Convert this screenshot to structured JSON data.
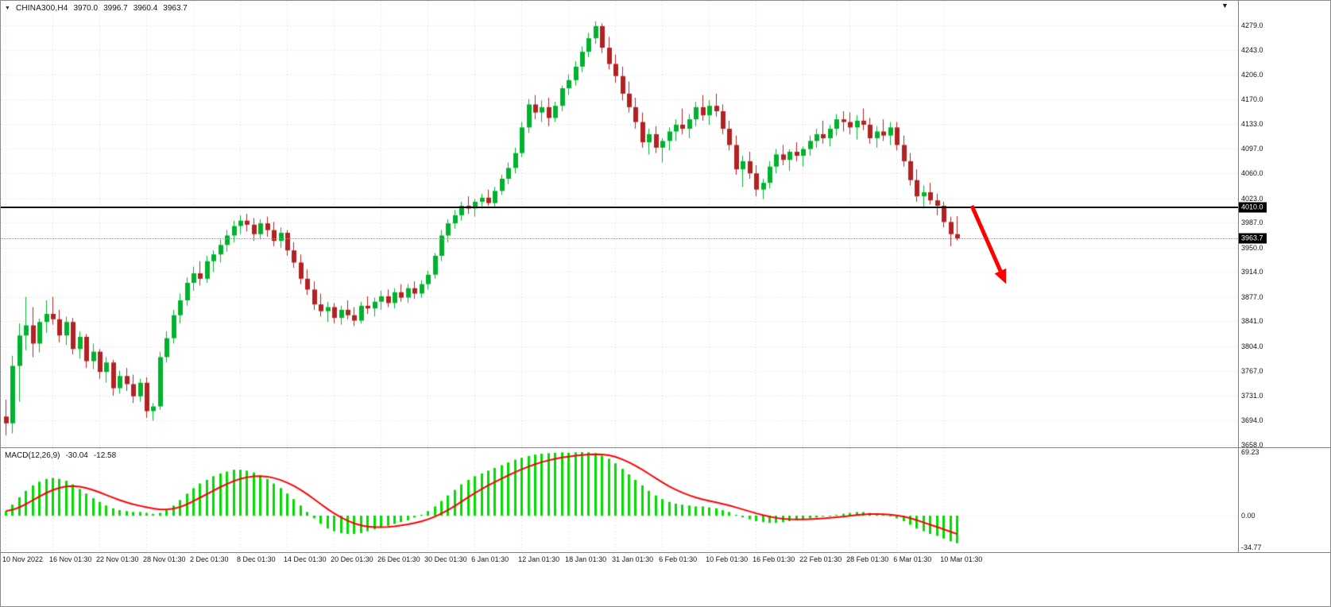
{
  "header": {
    "dropdown_icon": "▼",
    "symbol": "CHINA300,H4",
    "open": "3970.0",
    "high": "3996.7",
    "low": "3960.4",
    "close": "3963.7",
    "shift_marker_icon": "▼"
  },
  "indicator": {
    "name": "MACD(12,26,9)",
    "macd_value": "-30.04",
    "signal_value": "-12.58"
  },
  "colors": {
    "background": "#FFFFFF",
    "grid": "#D2D2D2",
    "candle_up": "#00B22D",
    "candle_down": "#B22222",
    "macd_histogram": "#00DC00",
    "macd_signal": "#FF0000",
    "hline": "#000000",
    "badge_bg": "#000000",
    "arrow": "#FF0000",
    "text": "#141414"
  },
  "chart_data": [
    {
      "type": "candlestick",
      "title": "CHINA300,H4",
      "symbol": "CHINA300",
      "timeframe": "H4",
      "current_ohlc": {
        "open": 3970.0,
        "high": 3996.7,
        "low": 3960.4,
        "close": 3963.7
      },
      "grid": true,
      "ylim": [
        3654,
        4316
      ],
      "y_ticks": [
        4279.0,
        4243.0,
        4206.0,
        4170.0,
        4133.0,
        4097.0,
        4060.0,
        4023.0,
        3987.0,
        3950.0,
        3914.0,
        3877.0,
        3841.0,
        3804.0,
        3767.0,
        3731.0,
        3694.0,
        3658.0
      ],
      "x_tick_labels": [
        "10 Nov 2022",
        "16 Nov 01:30",
        "22 Nov 01:30",
        "28 Nov 01:30",
        "2 Dec 01:30",
        "8 Dec 01:30",
        "14 Dec 01:30",
        "20 Dec 01:30",
        "26 Dec 01:30",
        "30 Dec 01:30",
        "6 Jan 01:30",
        "12 Jan 01:30",
        "18 Jan 01:30",
        "31 Jan 01:30",
        "6 Feb 01:30",
        "10 Feb 01:30",
        "16 Feb 01:30",
        "22 Feb 01:30",
        "28 Feb 01:30",
        "6 Mar 01:30",
        "10 Mar 01:30"
      ],
      "bars_per_tick": 7,
      "hline": {
        "value": 4010.0,
        "label": "4010.0",
        "color": "#000000"
      },
      "bid": {
        "value": 3963.7,
        "label": "3963.7"
      },
      "annotations": [
        {
          "type": "arrow",
          "direction": "down-right",
          "color": "#FF0000"
        }
      ],
      "ohlc": [
        [
          3700,
          3725,
          3672,
          3690
        ],
        [
          3690,
          3790,
          3675,
          3775
        ],
        [
          3775,
          3838,
          3722,
          3820
        ],
        [
          3820,
          3877,
          3798,
          3835
        ],
        [
          3835,
          3862,
          3788,
          3808
        ],
        [
          3808,
          3845,
          3795,
          3840
        ],
        [
          3840,
          3872,
          3824,
          3852
        ],
        [
          3852,
          3877,
          3836,
          3844
        ],
        [
          3844,
          3858,
          3810,
          3820
        ],
        [
          3820,
          3848,
          3806,
          3840
        ],
        [
          3840,
          3846,
          3792,
          3800
        ],
        [
          3800,
          3826,
          3786,
          3818
        ],
        [
          3818,
          3822,
          3772,
          3782
        ],
        [
          3782,
          3808,
          3770,
          3796
        ],
        [
          3796,
          3800,
          3756,
          3766
        ],
        [
          3766,
          3788,
          3750,
          3780
        ],
        [
          3780,
          3784,
          3731,
          3742
        ],
        [
          3742,
          3768,
          3734,
          3760
        ],
        [
          3760,
          3772,
          3738,
          3748
        ],
        [
          3748,
          3762,
          3720,
          3730
        ],
        [
          3730,
          3756,
          3722,
          3750
        ],
        [
          3750,
          3758,
          3698,
          3708
        ],
        [
          3708,
          3720,
          3694,
          3715
        ],
        [
          3715,
          3796,
          3710,
          3788
        ],
        [
          3788,
          3826,
          3780,
          3816
        ],
        [
          3816,
          3858,
          3808,
          3850
        ],
        [
          3850,
          3882,
          3838,
          3872
        ],
        [
          3872,
          3906,
          3864,
          3898
        ],
        [
          3898,
          3922,
          3886,
          3912
        ],
        [
          3912,
          3930,
          3894,
          3904
        ],
        [
          3904,
          3938,
          3898,
          3930
        ],
        [
          3930,
          3946,
          3914,
          3940
        ],
        [
          3940,
          3962,
          3928,
          3954
        ],
        [
          3954,
          3976,
          3944,
          3968
        ],
        [
          3968,
          3990,
          3958,
          3982
        ],
        [
          3982,
          3998,
          3970,
          3990
        ],
        [
          3990,
          4000,
          3974,
          3984
        ],
        [
          3984,
          3994,
          3960,
          3970
        ],
        [
          3970,
          3992,
          3962,
          3986
        ],
        [
          3986,
          3996,
          3966,
          3976
        ],
        [
          3976,
          3988,
          3952,
          3960
        ],
        [
          3960,
          3980,
          3950,
          3972
        ],
        [
          3972,
          3976,
          3938,
          3946
        ],
        [
          3946,
          3958,
          3920,
          3928
        ],
        [
          3928,
          3940,
          3896,
          3904
        ],
        [
          3904,
          3918,
          3880,
          3888
        ],
        [
          3888,
          3900,
          3858,
          3866
        ],
        [
          3866,
          3882,
          3848,
          3856
        ],
        [
          3856,
          3870,
          3840,
          3862
        ],
        [
          3862,
          3868,
          3838,
          3846
        ],
        [
          3846,
          3864,
          3836,
          3858
        ],
        [
          3858,
          3872,
          3844,
          3850
        ],
        [
          3850,
          3862,
          3834,
          3842
        ],
        [
          3842,
          3870,
          3838,
          3864
        ],
        [
          3864,
          3878,
          3852,
          3860
        ],
        [
          3860,
          3876,
          3848,
          3870
        ],
        [
          3870,
          3886,
          3858,
          3878
        ],
        [
          3878,
          3888,
          3862,
          3868
        ],
        [
          3868,
          3890,
          3860,
          3884
        ],
        [
          3884,
          3896,
          3870,
          3876
        ],
        [
          3876,
          3896,
          3868,
          3890
        ],
        [
          3890,
          3900,
          3874,
          3882
        ],
        [
          3882,
          3902,
          3876,
          3896
        ],
        [
          3896,
          3916,
          3888,
          3910
        ],
        [
          3910,
          3942,
          3904,
          3938
        ],
        [
          3938,
          3976,
          3930,
          3968
        ],
        [
          3968,
          3992,
          3958,
          3986
        ],
        [
          3986,
          4006,
          3978,
          3998
        ],
        [
          3998,
          4018,
          3990,
          4012
        ],
        [
          4012,
          4026,
          4000,
          4008
        ],
        [
          4008,
          4022,
          3996,
          4018
        ],
        [
          4018,
          4030,
          4008,
          4024
        ],
        [
          4024,
          4036,
          4012,
          4016
        ],
        [
          4016,
          4040,
          4010,
          4034
        ],
        [
          4034,
          4058,
          4028,
          4052
        ],
        [
          4052,
          4076,
          4044,
          4068
        ],
        [
          4068,
          4098,
          4060,
          4090
        ],
        [
          4090,
          4136,
          4084,
          4128
        ],
        [
          4128,
          4170,
          4120,
          4162
        ],
        [
          4162,
          4176,
          4140,
          4150
        ],
        [
          4150,
          4168,
          4136,
          4158
        ],
        [
          4158,
          4172,
          4130,
          4142
        ],
        [
          4142,
          4166,
          4136,
          4160
        ],
        [
          4160,
          4190,
          4152,
          4186
        ],
        [
          4186,
          4206,
          4176,
          4198
        ],
        [
          4198,
          4226,
          4190,
          4218
        ],
        [
          4218,
          4248,
          4210,
          4240
        ],
        [
          4240,
          4268,
          4232,
          4260
        ],
        [
          4260,
          4285,
          4252,
          4278
        ],
        [
          4278,
          4282,
          4238,
          4246
        ],
        [
          4246,
          4262,
          4214,
          4222
        ],
        [
          4222,
          4236,
          4194,
          4204
        ],
        [
          4204,
          4218,
          4168,
          4178
        ],
        [
          4178,
          4196,
          4150,
          4158
        ],
        [
          4158,
          4172,
          4126,
          4136
        ],
        [
          4136,
          4150,
          4098,
          4106
        ],
        [
          4106,
          4126,
          4088,
          4118
        ],
        [
          4118,
          4130,
          4090,
          4098
        ],
        [
          4098,
          4112,
          4076,
          4108
        ],
        [
          4108,
          4128,
          4094,
          4122
        ],
        [
          4122,
          4140,
          4108,
          4132
        ],
        [
          4132,
          4156,
          4118,
          4126
        ],
        [
          4126,
          4148,
          4112,
          4140
        ],
        [
          4140,
          4166,
          4130,
          4158
        ],
        [
          4158,
          4176,
          4138,
          4146
        ],
        [
          4146,
          4168,
          4132,
          4160
        ],
        [
          4160,
          4178,
          4144,
          4152
        ],
        [
          4152,
          4162,
          4118,
          4126
        ],
        [
          4126,
          4138,
          4094,
          4102
        ],
        [
          4102,
          4116,
          4058,
          4066
        ],
        [
          4066,
          4086,
          4040,
          4078
        ],
        [
          4078,
          4092,
          4052,
          4060
        ],
        [
          4060,
          4072,
          4026,
          4036
        ],
        [
          4036,
          4052,
          4022,
          4046
        ],
        [
          4046,
          4078,
          4038,
          4070
        ],
        [
          4070,
          4096,
          4060,
          4088
        ],
        [
          4088,
          4102,
          4072,
          4080
        ],
        [
          4080,
          4096,
          4064,
          4092
        ],
        [
          4092,
          4106,
          4078,
          4086
        ],
        [
          4086,
          4100,
          4070,
          4096
        ],
        [
          4096,
          4116,
          4086,
          4108
        ],
        [
          4108,
          4126,
          4098,
          4118
        ],
        [
          4118,
          4138,
          4104,
          4112
        ],
        [
          4112,
          4132,
          4100,
          4126
        ],
        [
          4126,
          4148,
          4116,
          4140
        ],
        [
          4140,
          4152,
          4122,
          4136
        ],
        [
          4136,
          4150,
          4118,
          4128
        ],
        [
          4128,
          4146,
          4110,
          4138
        ],
        [
          4138,
          4156,
          4124,
          4132
        ],
        [
          4132,
          4142,
          4104,
          4112
        ],
        [
          4112,
          4130,
          4098,
          4122
        ],
        [
          4122,
          4140,
          4108,
          4116
        ],
        [
          4116,
          4136,
          4102,
          4128
        ],
        [
          4128,
          4136,
          4094,
          4102
        ],
        [
          4102,
          4116,
          4070,
          4078
        ],
        [
          4078,
          4090,
          4042,
          4050
        ],
        [
          4050,
          4066,
          4018,
          4026
        ],
        [
          4026,
          4042,
          4008,
          4032
        ],
        [
          4032,
          4046,
          4014,
          4020
        ],
        [
          4020,
          4030,
          3998,
          4012
        ],
        [
          4012,
          4018,
          3980,
          3988
        ],
        [
          3988,
          3996,
          3952,
          3970
        ],
        [
          3970,
          3996.7,
          3960.4,
          3963.7
        ]
      ]
    },
    {
      "type": "bar",
      "title": "MACD(12,26,9)",
      "signal_period": 9,
      "current": {
        "macd": -30.04,
        "signal": -12.58
      },
      "y_ticks": [
        69.23,
        0.0,
        -34.77
      ],
      "ylim": [
        -38,
        74
      ],
      "values": [
        5,
        12,
        20,
        27,
        33,
        37,
        40,
        41,
        40,
        38,
        34,
        29,
        24,
        19,
        15,
        11,
        8,
        6,
        5,
        4,
        4,
        3,
        2,
        3,
        6,
        11,
        17,
        24,
        30,
        35,
        39,
        43,
        46,
        48,
        50,
        50,
        49,
        47,
        44,
        40,
        35,
        30,
        24,
        18,
        11,
        4,
        -3,
        -9,
        -14,
        -17,
        -19,
        -20,
        -20,
        -19,
        -17,
        -15,
        -13,
        -11,
        -9,
        -7,
        -5,
        -2,
        1,
        5,
        10,
        16,
        22,
        28,
        34,
        39,
        43,
        46,
        49,
        52,
        55,
        58,
        61,
        63,
        65,
        66.5,
        67.5,
        68,
        68.5,
        69,
        68.5,
        69,
        69.23,
        69,
        68,
        65.5,
        62,
        57,
        51,
        45,
        39,
        33,
        27,
        22,
        18,
        15,
        13,
        12,
        11,
        10,
        10,
        9,
        8,
        6,
        4,
        1,
        -2,
        -4,
        -6,
        -7,
        -8,
        -8,
        -7,
        -6,
        -5,
        -4,
        -3,
        -2,
        -1,
        0,
        1,
        2,
        3,
        4,
        4,
        3,
        2,
        1,
        -1,
        -3,
        -6,
        -10,
        -14,
        -17,
        -20,
        -22,
        -25,
        -28,
        -30.04
      ]
    }
  ]
}
